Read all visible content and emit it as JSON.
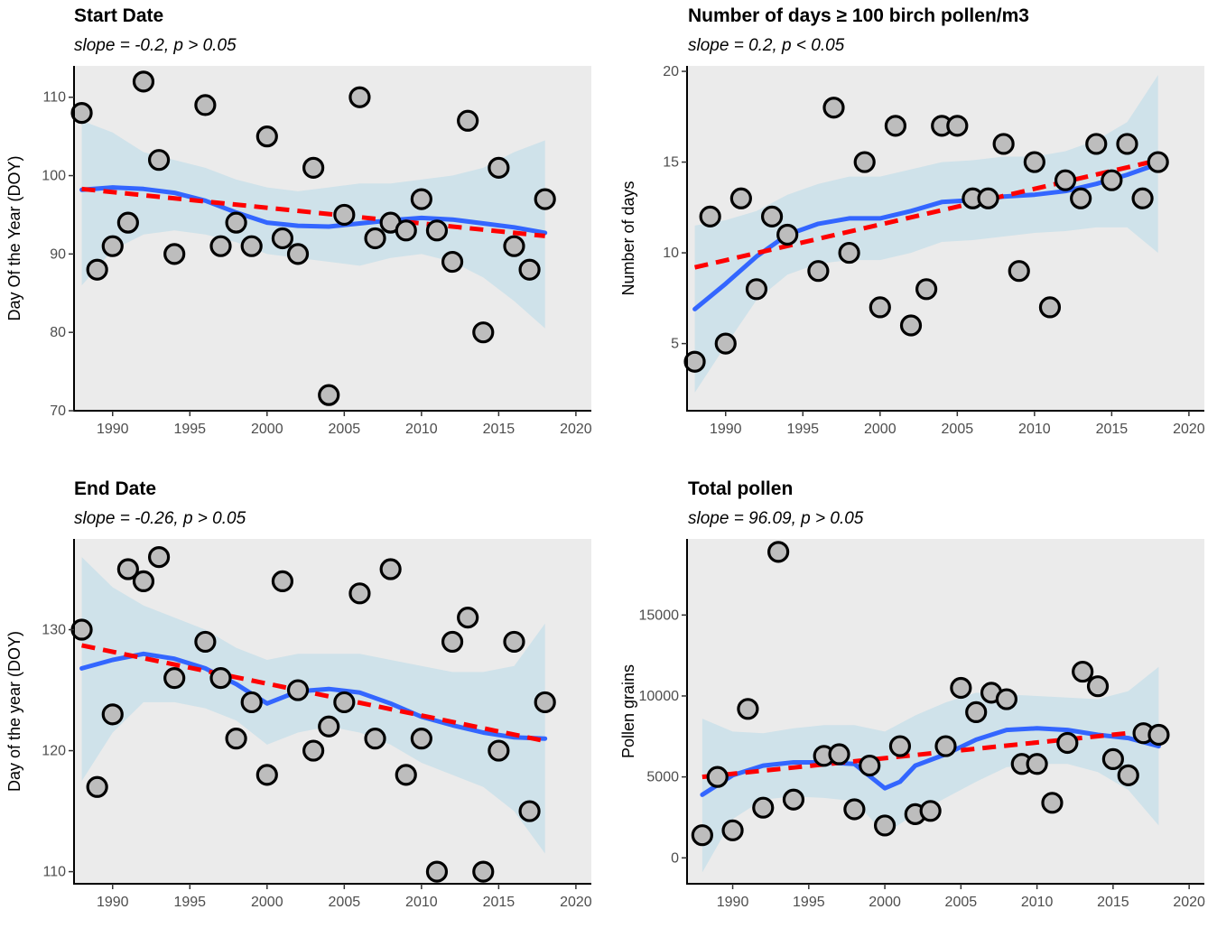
{
  "chart_data": [
    {
      "type": "scatter",
      "title": "Start Date",
      "subtitle": "slope = -0.2, p > 0.05",
      "xlabel": "",
      "ylabel": "Day Of the Year (DOY)",
      "xlim": [
        1987.5,
        2021.0
      ],
      "ylim": [
        70,
        114
      ],
      "x_ticks": [
        1990,
        1995,
        2000,
        2005,
        2010,
        2015,
        2020
      ],
      "y_ticks": [
        70,
        80,
        90,
        100,
        110
      ],
      "points": [
        [
          1988,
          108
        ],
        [
          1989,
          88
        ],
        [
          1990,
          91
        ],
        [
          1991,
          94
        ],
        [
          1992,
          112
        ],
        [
          1993,
          102
        ],
        [
          1994,
          90
        ],
        [
          1996,
          109
        ],
        [
          1997,
          91
        ],
        [
          1998,
          94
        ],
        [
          1999,
          91
        ],
        [
          2000,
          105
        ],
        [
          2001,
          92
        ],
        [
          2002,
          90
        ],
        [
          2003,
          101
        ],
        [
          2004,
          72
        ],
        [
          2005,
          95
        ],
        [
          2006,
          110
        ],
        [
          2007,
          92
        ],
        [
          2008,
          94
        ],
        [
          2009,
          93
        ],
        [
          2010,
          97
        ],
        [
          2011,
          93
        ],
        [
          2012,
          89
        ],
        [
          2013,
          107
        ],
        [
          2014,
          80
        ],
        [
          2015,
          101
        ],
        [
          2016,
          91
        ],
        [
          2017,
          88
        ],
        [
          2018,
          97
        ]
      ],
      "loess": [
        [
          1988,
          98.2
        ],
        [
          1990,
          98.5
        ],
        [
          1992,
          98.3
        ],
        [
          1994,
          97.8
        ],
        [
          1996,
          96.8
        ],
        [
          1998,
          95.3
        ],
        [
          2000,
          94.0
        ],
        [
          2002,
          93.6
        ],
        [
          2004,
          93.5
        ],
        [
          2006,
          93.9
        ],
        [
          2008,
          94.3
        ],
        [
          2010,
          94.6
        ],
        [
          2012,
          94.4
        ],
        [
          2014,
          93.9
        ],
        [
          2016,
          93.4
        ],
        [
          2018,
          92.7
        ]
      ],
      "ci_upper": [
        [
          1988,
          107
        ],
        [
          1990,
          105.5
        ],
        [
          1992,
          103
        ],
        [
          1994,
          102
        ],
        [
          1996,
          101
        ],
        [
          1998,
          99.5
        ],
        [
          2000,
          98.5
        ],
        [
          2002,
          98
        ],
        [
          2004,
          98.5
        ],
        [
          2006,
          99
        ],
        [
          2008,
          99
        ],
        [
          2010,
          99.5
        ],
        [
          2012,
          100
        ],
        [
          2014,
          101
        ],
        [
          2016,
          103
        ],
        [
          2018,
          104.5
        ]
      ],
      "ci_lower": [
        [
          1988,
          86
        ],
        [
          1990,
          90.5
        ],
        [
          1992,
          92.5
        ],
        [
          1994,
          93
        ],
        [
          1996,
          92.5
        ],
        [
          1998,
          91.5
        ],
        [
          2000,
          90
        ],
        [
          2002,
          89.5
        ],
        [
          2004,
          89
        ],
        [
          2006,
          88.5
        ],
        [
          2008,
          89.5
        ],
        [
          2010,
          90
        ],
        [
          2012,
          89
        ],
        [
          2014,
          87
        ],
        [
          2016,
          84
        ],
        [
          2018,
          80.5
        ]
      ],
      "trend": [
        [
          1988,
          98.3
        ],
        [
          2018,
          92.3
        ]
      ],
      "colors": {
        "points_fill": "#bdbdbd",
        "points_stroke": "#000000",
        "loess": "#3366ff",
        "ci": "#cfe2ea",
        "trend": "#ff0000",
        "panel_bg": "#ebebeb"
      }
    },
    {
      "type": "scatter",
      "title": "Number of days ≥ 100 birch pollen/m3",
      "subtitle": "slope = 0.2, p < 0.05",
      "xlabel": "",
      "ylabel": "Number of days",
      "xlim": [
        1987.5,
        2021.0
      ],
      "ylim": [
        1.3,
        20.3
      ],
      "x_ticks": [
        1990,
        1995,
        2000,
        2005,
        2010,
        2015,
        2020
      ],
      "y_ticks": [
        5,
        10,
        15,
        20
      ],
      "points": [
        [
          1988,
          4
        ],
        [
          1989,
          12
        ],
        [
          1990,
          5
        ],
        [
          1991,
          13
        ],
        [
          1992,
          8
        ],
        [
          1993,
          12
        ],
        [
          1994,
          11
        ],
        [
          1996,
          9
        ],
        [
          1997,
          18
        ],
        [
          1998,
          10
        ],
        [
          1999,
          15
        ],
        [
          2000,
          7
        ],
        [
          2001,
          17
        ],
        [
          2002,
          6
        ],
        [
          2003,
          8
        ],
        [
          2004,
          17
        ],
        [
          2005,
          17
        ],
        [
          2006,
          13
        ],
        [
          2007,
          13
        ],
        [
          2008,
          16
        ],
        [
          2009,
          9
        ],
        [
          2010,
          15
        ],
        [
          2011,
          7
        ],
        [
          2012,
          14
        ],
        [
          2013,
          13
        ],
        [
          2014,
          16
        ],
        [
          2015,
          14
        ],
        [
          2016,
          16
        ],
        [
          2017,
          13
        ],
        [
          2018,
          15
        ]
      ],
      "loess": [
        [
          1988,
          6.9
        ],
        [
          1990,
          8.3
        ],
        [
          1992,
          9.8
        ],
        [
          1994,
          11.0
        ],
        [
          1996,
          11.6
        ],
        [
          1998,
          11.9
        ],
        [
          2000,
          11.9
        ],
        [
          2002,
          12.3
        ],
        [
          2004,
          12.8
        ],
        [
          2006,
          12.9
        ],
        [
          2008,
          13.1
        ],
        [
          2010,
          13.2
        ],
        [
          2012,
          13.4
        ],
        [
          2014,
          13.8
        ],
        [
          2016,
          14.3
        ],
        [
          2018,
          14.9
        ]
      ],
      "ci_upper": [
        [
          1988,
          11.5
        ],
        [
          1990,
          11.8
        ],
        [
          1992,
          12.3
        ],
        [
          1994,
          13.2
        ],
        [
          1996,
          13.8
        ],
        [
          1998,
          14.2
        ],
        [
          2000,
          14.2
        ],
        [
          2002,
          14.6
        ],
        [
          2004,
          15
        ],
        [
          2006,
          15.1
        ],
        [
          2008,
          15.3
        ],
        [
          2010,
          15.3
        ],
        [
          2012,
          15.6
        ],
        [
          2014,
          16.2
        ],
        [
          2016,
          17.2
        ],
        [
          2018,
          19.8
        ]
      ],
      "ci_lower": [
        [
          1988,
          2.3
        ],
        [
          1990,
          4.9
        ],
        [
          1992,
          7.4
        ],
        [
          1994,
          8.8
        ],
        [
          1996,
          9.4
        ],
        [
          1998,
          9.6
        ],
        [
          2000,
          9.6
        ],
        [
          2002,
          10
        ],
        [
          2004,
          10.6
        ],
        [
          2006,
          10.7
        ],
        [
          2008,
          10.9
        ],
        [
          2010,
          11.1
        ],
        [
          2012,
          11.2
        ],
        [
          2014,
          11.4
        ],
        [
          2016,
          11.4
        ],
        [
          2018,
          10
        ]
      ],
      "trend": [
        [
          1988,
          9.2
        ],
        [
          2018,
          15.1
        ]
      ],
      "colors": {
        "points_fill": "#bdbdbd",
        "points_stroke": "#000000",
        "loess": "#3366ff",
        "ci": "#cfe2ea",
        "trend": "#ff0000",
        "panel_bg": "#ebebeb"
      }
    },
    {
      "type": "scatter",
      "title": "End Date",
      "subtitle": "slope = -0.26, p > 0.05",
      "xlabel": "",
      "ylabel": "Day of the year (DOY)",
      "xlim": [
        1987.5,
        2021.0
      ],
      "ylim": [
        109,
        137.5
      ],
      "x_ticks": [
        1990,
        1995,
        2000,
        2005,
        2010,
        2015,
        2020
      ],
      "y_ticks": [
        110,
        120,
        130
      ],
      "points": [
        [
          1988,
          130
        ],
        [
          1989,
          117
        ],
        [
          1990,
          123
        ],
        [
          1991,
          135
        ],
        [
          1992,
          134
        ],
        [
          1993,
          136
        ],
        [
          1994,
          126
        ],
        [
          1996,
          129
        ],
        [
          1997,
          126
        ],
        [
          1998,
          121
        ],
        [
          1999,
          124
        ],
        [
          2000,
          118
        ],
        [
          2001,
          134
        ],
        [
          2002,
          125
        ],
        [
          2003,
          120
        ],
        [
          2004,
          122
        ],
        [
          2005,
          124
        ],
        [
          2006,
          133
        ],
        [
          2007,
          121
        ],
        [
          2008,
          135
        ],
        [
          2009,
          118
        ],
        [
          2010,
          121
        ],
        [
          2011,
          110
        ],
        [
          2012,
          129
        ],
        [
          2013,
          131
        ],
        [
          2014,
          110
        ],
        [
          2015,
          120
        ],
        [
          2016,
          129
        ],
        [
          2017,
          115
        ],
        [
          2018,
          124
        ]
      ],
      "loess": [
        [
          1988,
          126.8
        ],
        [
          1990,
          127.5
        ],
        [
          1992,
          128.0
        ],
        [
          1994,
          127.6
        ],
        [
          1996,
          126.8
        ],
        [
          1998,
          125.5
        ],
        [
          2000,
          123.9
        ],
        [
          2002,
          124.9
        ],
        [
          2004,
          125.1
        ],
        [
          2006,
          124.8
        ],
        [
          2008,
          123.9
        ],
        [
          2010,
          122.8
        ],
        [
          2012,
          122.1
        ],
        [
          2014,
          121.5
        ],
        [
          2016,
          121.1
        ],
        [
          2018,
          121.0
        ]
      ],
      "ci_upper": [
        [
          1988,
          136
        ],
        [
          1990,
          133.5
        ],
        [
          1992,
          132
        ],
        [
          1994,
          131
        ],
        [
          1996,
          130
        ],
        [
          1998,
          128.5
        ],
        [
          2000,
          127.5
        ],
        [
          2002,
          128
        ],
        [
          2004,
          128
        ],
        [
          2006,
          128
        ],
        [
          2008,
          127.5
        ],
        [
          2010,
          127
        ],
        [
          2012,
          126.5
        ],
        [
          2014,
          126.5
        ],
        [
          2016,
          127
        ],
        [
          2018,
          130.5
        ]
      ],
      "ci_lower": [
        [
          1988,
          117.5
        ],
        [
          1990,
          121.5
        ],
        [
          1992,
          124
        ],
        [
          1994,
          124
        ],
        [
          1996,
          123.5
        ],
        [
          1998,
          122.5
        ],
        [
          2000,
          120.5
        ],
        [
          2002,
          121.5
        ],
        [
          2004,
          122
        ],
        [
          2006,
          121.5
        ],
        [
          2008,
          120.5
        ],
        [
          2010,
          119
        ],
        [
          2012,
          118
        ],
        [
          2014,
          117
        ],
        [
          2016,
          115
        ],
        [
          2018,
          111.5
        ]
      ],
      "trend": [
        [
          1988,
          128.7
        ],
        [
          2018,
          120.8
        ]
      ],
      "colors": {
        "points_fill": "#bdbdbd",
        "points_stroke": "#000000",
        "loess": "#3366ff",
        "ci": "#cfe2ea",
        "trend": "#ff0000",
        "panel_bg": "#ebebeb"
      }
    },
    {
      "type": "scatter",
      "title": "Total pollen",
      "subtitle": "slope = 96.09, p > 0.05",
      "xlabel": "",
      "ylabel": "Pollen grains",
      "xlim": [
        1987.0,
        2021.0
      ],
      "ylim": [
        -1600,
        19700
      ],
      "x_ticks": [
        1990,
        1995,
        2000,
        2005,
        2010,
        2015,
        2020
      ],
      "y_ticks": [
        0,
        5000,
        10000,
        15000
      ],
      "points": [
        [
          1988,
          1400
        ],
        [
          1989,
          5000
        ],
        [
          1990,
          1700
        ],
        [
          1991,
          9200
        ],
        [
          1992,
          3100
        ],
        [
          1993,
          18900
        ],
        [
          1994,
          3600
        ],
        [
          1996,
          6300
        ],
        [
          1997,
          6400
        ],
        [
          1998,
          3000
        ],
        [
          1999,
          5700
        ],
        [
          2000,
          2000
        ],
        [
          2001,
          6900
        ],
        [
          2002,
          2700
        ],
        [
          2003,
          2900
        ],
        [
          2004,
          6900
        ],
        [
          2005,
          10500
        ],
        [
          2006,
          9000
        ],
        [
          2007,
          10200
        ],
        [
          2008,
          9800
        ],
        [
          2009,
          5800
        ],
        [
          2010,
          5800
        ],
        [
          2011,
          3400
        ],
        [
          2012,
          7100
        ],
        [
          2013,
          11500
        ],
        [
          2014,
          10600
        ],
        [
          2015,
          6100
        ],
        [
          2016,
          5100
        ],
        [
          2017,
          7700
        ],
        [
          2018,
          7600
        ]
      ],
      "loess": [
        [
          1988,
          3900
        ],
        [
          1990,
          5100
        ],
        [
          1992,
          5700
        ],
        [
          1994,
          5900
        ],
        [
          1996,
          5900
        ],
        [
          1998,
          5800
        ],
        [
          2000,
          4300
        ],
        [
          2001,
          4700
        ],
        [
          2002,
          5700
        ],
        [
          2004,
          6400
        ],
        [
          2006,
          7300
        ],
        [
          2008,
          7900
        ],
        [
          2010,
          8000
        ],
        [
          2012,
          7900
        ],
        [
          2014,
          7600
        ],
        [
          2016,
          7400
        ],
        [
          2018,
          6900
        ]
      ],
      "ci_upper": [
        [
          1988,
          8600
        ],
        [
          1990,
          7800
        ],
        [
          1992,
          7700
        ],
        [
          1994,
          8000
        ],
        [
          1996,
          8200
        ],
        [
          1998,
          8200
        ],
        [
          2000,
          7800
        ],
        [
          2002,
          8800
        ],
        [
          2004,
          9600
        ],
        [
          2006,
          10200
        ],
        [
          2008,
          10100
        ],
        [
          2010,
          10000
        ],
        [
          2012,
          9900
        ],
        [
          2014,
          9800
        ],
        [
          2016,
          10300
        ],
        [
          2018,
          11800
        ]
      ],
      "ci_lower": [
        [
          1988,
          -900
        ],
        [
          1990,
          2400
        ],
        [
          1992,
          3600
        ],
        [
          1994,
          3800
        ],
        [
          1996,
          3700
        ],
        [
          1998,
          3500
        ],
        [
          2000,
          1500
        ],
        [
          2002,
          2700
        ],
        [
          2004,
          3700
        ],
        [
          2006,
          4700
        ],
        [
          2008,
          5600
        ],
        [
          2010,
          5800
        ],
        [
          2012,
          5800
        ],
        [
          2014,
          5300
        ],
        [
          2016,
          4200
        ],
        [
          2018,
          2000
        ]
      ],
      "trend": [
        [
          1988,
          5000
        ],
        [
          2018,
          7900
        ]
      ],
      "colors": {
        "points_fill": "#bdbdbd",
        "points_stroke": "#000000",
        "loess": "#3366ff",
        "ci": "#cfe2ea",
        "trend": "#ff0000",
        "panel_bg": "#ebebeb"
      }
    }
  ]
}
